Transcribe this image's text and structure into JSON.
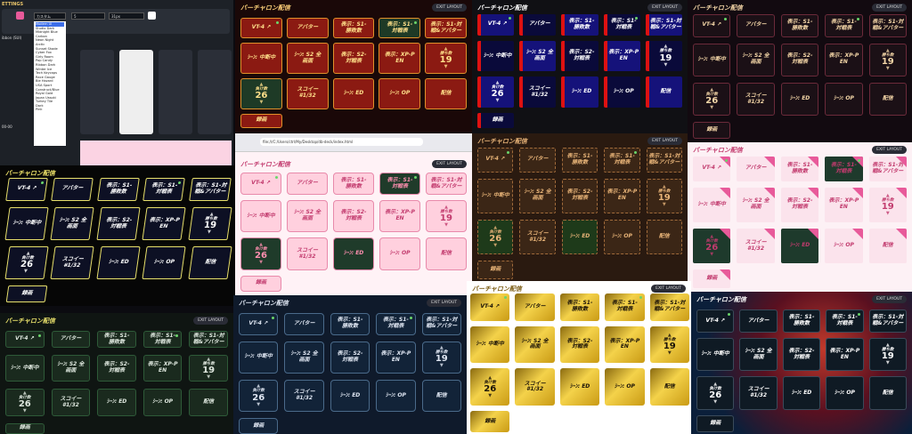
{
  "title": "バーチャロン配信",
  "exit_label": "EXIT LAYOUT",
  "settings": {
    "header": "ETTINGS",
    "labels": [
      "PRESET",
      "COLUMNS",
      "SIZE",
      "FONT",
      "PAGE BG"
    ],
    "font_value": "カスタム",
    "columns_value": "5",
    "size_value": "31px",
    "row2": [
      "ibbon (SUI)",
      "8",
      "3"
    ],
    "presets": [
      "Modern UI",
      "Studio Dark",
      "Midnight Blue",
      "Carbon",
      "Neon Night",
      "Arctic",
      "Sunset Shade",
      "Cyber Fox",
      "Girly Room",
      "Pop Candy",
      "Ribbon Dark",
      "Winter Ice",
      "Tech Keycaps",
      "Race Gauge",
      "Ble Hazard",
      "USA Sport",
      "Construct/Blue",
      "Royal Gold",
      "Japan Ussoki",
      "Turkey Tile",
      "Dark",
      "Pink"
    ],
    "footer": "00-00"
  },
  "browser_url": "file:///C:/Users/ctrl/My/Desktop/db-deck/index.html",
  "tiles": [
    {
      "l1": "VT-4 ↗"
    },
    {
      "l1": "アバター"
    },
    {
      "l1": "表示：S1-",
      "l2": "勝敗数"
    },
    {
      "l1": "表示：S1-",
      "l2": "対戦表"
    },
    {
      "l1": "表示：S1-対",
      "l2": "戦&アバター"
    },
    {
      "l1": "ｼｰﾝ: 中断中"
    },
    {
      "l1": "ｼｰﾝ: S2 全",
      "l2": "画面"
    },
    {
      "l1": "表示：S2-",
      "l2": "対戦表"
    },
    {
      "l1": "表示：XP-P",
      "l2": "EN"
    },
    {
      "l1": "勝ち数",
      "big": "19"
    },
    {
      "l1": "負け数",
      "big": "26"
    },
    {
      "l1": "スコイー",
      "l2": "#1/32"
    },
    {
      "l1": "ｼｰﾝ: ED"
    },
    {
      "l1": "ｼｰﾝ: OP"
    },
    {
      "l1": "配信"
    },
    {
      "l1": "録画"
    }
  ],
  "colors": {
    "pink_accent": "#e85a9a",
    "gold": "#d4a017",
    "green": "#6bd66b",
    "red_theme": "#c0392b"
  }
}
